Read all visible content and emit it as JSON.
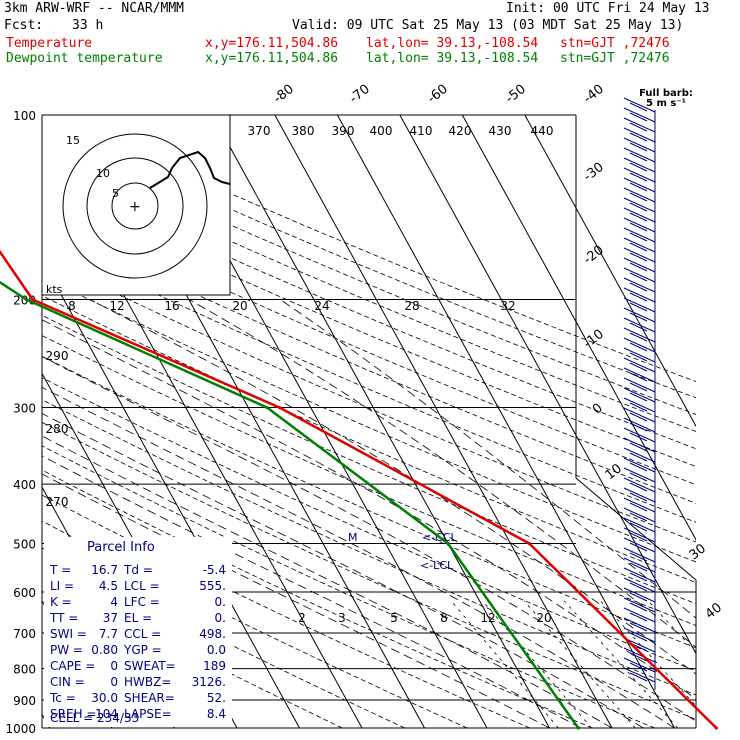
{
  "header": {
    "model": "3km ARW-WRF -- NCAR/MMM",
    "init": "Init: 00 UTC Fri 24 May 13",
    "fcst_label": "Fcst:",
    "fcst_value": "33 h",
    "valid": "Valid: 09 UTC Sat 25 May 13 (03 MDT Sat 25 May 13)",
    "temp_label": "Temperature",
    "dew_label": "Dewpoint temperature",
    "xy": "x,y=176.11,504.86",
    "latlon": "lat,lon= 39.13,-108.54",
    "stn": "stn=GJT ,72476"
  },
  "colors": {
    "temperature": "#e00000",
    "dewpoint": "#008000",
    "parcel": "#000080"
  },
  "chart_data": {
    "type": "line",
    "title": "",
    "xlabel": "",
    "ylabel": "",
    "y_scale": "log-pressure",
    "pressure_ticks": [
      "100",
      "200",
      "300",
      "400",
      "500",
      "600",
      "700",
      "800",
      "900",
      "1000"
    ],
    "isotherm_labels": [
      "-80",
      "-70",
      "-60",
      "-50",
      "-40",
      "-30",
      "-20",
      "-10",
      "0",
      "10",
      "30",
      "40"
    ],
    "theta_labels": [
      "370",
      "380",
      "390",
      "400",
      "410",
      "420",
      "430",
      "440",
      "290",
      "280",
      "270"
    ],
    "mixing_ratio_labels": [
      "2",
      "3",
      "5",
      "8",
      "12",
      "20"
    ],
    "series": [
      {
        "name": "Temperature",
        "p": [
          1000,
          500,
          300,
          200,
          100
        ],
        "t": [
          16.7,
          3.0,
          -25.0,
          -55.0,
          -59.0
        ]
      },
      {
        "name": "Dewpoint temperature",
        "p": [
          1000,
          500,
          300,
          200,
          100
        ],
        "t": [
          -5.4,
          -10.0,
          -27.0,
          -56.0,
          -85.0
        ]
      }
    ],
    "annotations": {
      "m": "M",
      "ccl": "<-CCL",
      "lcl": "<-LCL"
    },
    "wind_barbs_header": "Full barb:",
    "wind_barbs_unit": "5 m s⁻¹",
    "hodograph": {
      "unit": "kts",
      "ring_labels": [
        "5",
        "10",
        "15"
      ],
      "speed_axis": [
        "8",
        "12",
        "16",
        "20",
        "24",
        "28",
        "32"
      ]
    }
  },
  "parcel_info": {
    "title": "Parcel Info",
    "rows": [
      [
        "T  =",
        "16.7",
        "Td =",
        "-5.4"
      ],
      [
        "LI =",
        "4.5",
        "LCL =",
        "555."
      ],
      [
        "K  =",
        "4",
        "LFC =",
        "0."
      ],
      [
        "TT =",
        "37",
        "EL =",
        "0."
      ],
      [
        "SWI =",
        "7.7",
        "CCL =",
        "498."
      ],
      [
        "PW =",
        "0.80",
        "YGP =",
        "0.0"
      ],
      [
        "CAPE =",
        "0",
        "SWEAT=",
        "189"
      ],
      [
        "CIN =",
        "0",
        "HWBZ=",
        "3126."
      ],
      [
        "Tc =",
        "30.0",
        "SHEAR=",
        "52."
      ],
      [
        "SREH =",
        "104",
        "LAPSE=",
        "8.4"
      ]
    ],
    "cell_label": "CELL = 234/33"
  }
}
